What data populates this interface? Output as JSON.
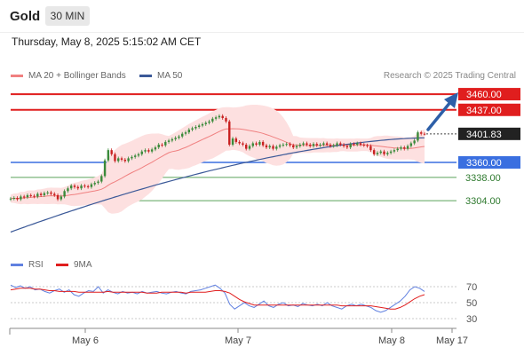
{
  "header": {
    "title": "Gold",
    "timeframe": "30 MIN",
    "datetime": "Thursday, May 8, 2025 5:15:02 AM CET"
  },
  "legend": {
    "ma20": "MA 20 + Bollinger Bands",
    "ma50": "MA 50",
    "credit": "Research © 2025 Trading Central"
  },
  "rsi_legend": {
    "rsi": "RSI",
    "ma": "9MA"
  },
  "colors": {
    "resistance": "#e01e1e",
    "support": "#3a6fe0",
    "target": "#5aa35a",
    "arrow": "#2d5fa8",
    "ma20": "#f08080",
    "ma50": "#3b5998",
    "bollinger": "#fde0e0",
    "candle_up": "#3a8a3a",
    "candle_down": "#c82020",
    "rsi": "#6080e0",
    "rsi_ma": "#e01e1e"
  },
  "chart_data": [
    {
      "type": "candlestick",
      "title": "Gold",
      "x_ticks": [
        "May 6",
        "May 7",
        "May 8",
        "May 17"
      ],
      "ylim": [
        3250,
        3475
      ],
      "price_levels": [
        {
          "value": 3460.0,
          "label": "3460.00",
          "kind": "resistance"
        },
        {
          "value": 3437.0,
          "label": "3437.00",
          "kind": "resistance"
        },
        {
          "value": 3401.83,
          "label": "3401.83",
          "kind": "current"
        },
        {
          "value": 3360.0,
          "label": "3360.00",
          "kind": "pivot"
        },
        {
          "value": 3338.0,
          "label": "3338.00",
          "kind": "support"
        },
        {
          "value": 3304.0,
          "label": "3304.00",
          "kind": "support"
        }
      ],
      "closes": [
        3307,
        3308,
        3306,
        3310,
        3309,
        3312,
        3311,
        3310,
        3314,
        3312,
        3315,
        3316,
        3314,
        3312,
        3306,
        3310,
        3318,
        3322,
        3326,
        3324,
        3322,
        3326,
        3325,
        3324,
        3328,
        3330,
        3332,
        3340,
        3363,
        3378,
        3372,
        3362,
        3366,
        3364,
        3362,
        3366,
        3368,
        3370,
        3372,
        3376,
        3378,
        3376,
        3379,
        3382,
        3386,
        3385,
        3390,
        3392,
        3394,
        3396,
        3398,
        3402,
        3404,
        3408,
        3410,
        3412,
        3414,
        3416,
        3418,
        3420,
        3424,
        3426,
        3428,
        3425,
        3420,
        3386,
        3395,
        3390,
        3388,
        3386,
        3380,
        3384,
        3388,
        3386,
        3390,
        3385,
        3382,
        3384,
        3380,
        3383,
        3385,
        3386,
        3387,
        3385,
        3382,
        3384,
        3386,
        3388,
        3386,
        3384,
        3387,
        3385,
        3386,
        3388,
        3386,
        3384,
        3385,
        3388,
        3386,
        3384,
        3382,
        3387,
        3386,
        3388,
        3386,
        3385,
        3384,
        3378,
        3372,
        3374,
        3376,
        3372,
        3374,
        3376,
        3378,
        3380,
        3382,
        3380,
        3384,
        3388,
        3392,
        3404,
        3402,
        3401.83
      ],
      "ma20_range": [
        3302,
        3398
      ],
      "ma50_range": [
        3258,
        3396
      ]
    },
    {
      "type": "line",
      "title": "RSI",
      "series": [
        {
          "name": "RSI",
          "values": [
            72,
            69,
            71,
            68,
            70,
            66,
            67,
            64,
            62,
            65,
            67,
            63,
            66,
            60,
            58,
            62,
            65,
            64,
            70,
            62,
            66,
            63,
            61,
            64,
            62,
            63,
            61,
            64,
            62,
            63,
            64,
            62,
            61,
            63,
            64,
            62,
            61,
            64,
            65,
            66,
            68,
            70,
            72,
            68,
            62,
            48,
            42,
            46,
            50,
            46,
            44,
            48,
            52,
            46,
            44,
            48,
            50,
            46,
            47,
            45,
            49,
            47,
            46,
            48,
            46,
            50,
            46,
            44,
            42,
            46,
            48,
            46,
            48,
            46,
            44,
            40,
            38,
            40,
            44,
            48,
            52,
            58,
            66,
            70,
            68,
            64
          ]
        },
        {
          "name": "9MA",
          "values": [
            66,
            67,
            68,
            68,
            68,
            67,
            67,
            66,
            65,
            65,
            64,
            64,
            64,
            64,
            63,
            63,
            63,
            63,
            63,
            63,
            64,
            63,
            63,
            63,
            63,
            63,
            63,
            63,
            62,
            62,
            62,
            63,
            63,
            63,
            63,
            63,
            62,
            63,
            63,
            63,
            63,
            64,
            65,
            65,
            64,
            62,
            58,
            54,
            51,
            49,
            47,
            47,
            47,
            47,
            47,
            47,
            47,
            47,
            47,
            47,
            47,
            47,
            47,
            47,
            47,
            47,
            47,
            47,
            46,
            46,
            46,
            46,
            46,
            46,
            46,
            45,
            44,
            43,
            42,
            42,
            44,
            47,
            51,
            55,
            58,
            60
          ]
        }
      ],
      "ylim": [
        20,
        85
      ],
      "y_ticks": [
        "70",
        "50",
        "30"
      ],
      "x_ticks": [
        "May 6",
        "May 7",
        "May 8",
        "May 17"
      ]
    }
  ]
}
